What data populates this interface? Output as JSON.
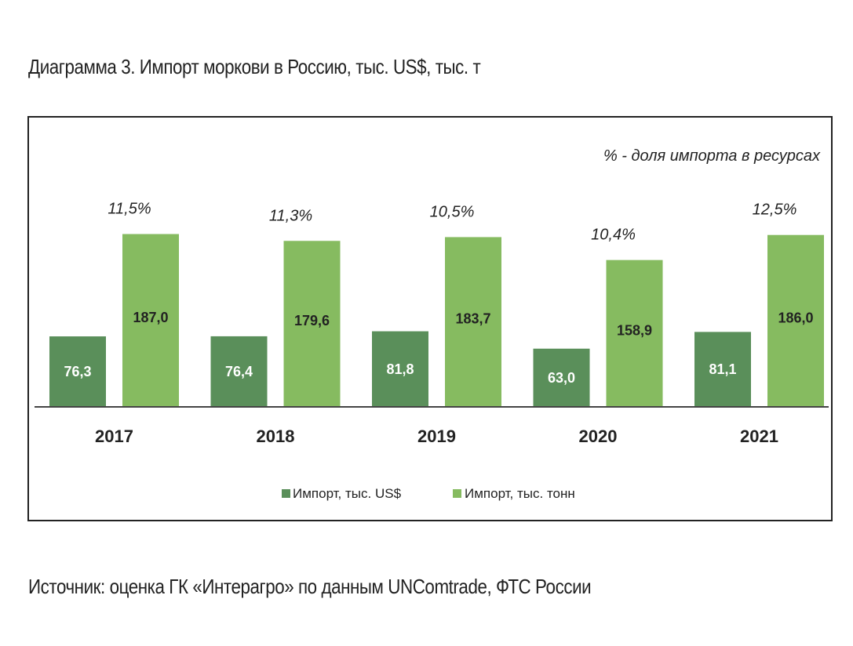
{
  "title": "Диаграмма 3. Импорт моркови в Россию, тыс. US$, тыс. т",
  "source": "Источник: оценка ГК «Интерагро» по данным UNComtrade, ФТС России",
  "colors": {
    "usd": "#5a8f5a",
    "tonnes": "#86bb60",
    "axis": "#444444",
    "text": "#222222"
  },
  "chart_data": {
    "type": "bar",
    "categories": [
      "2017",
      "2018",
      "2019",
      "2020",
      "2021"
    ],
    "series": [
      {
        "name": "Импорт, тыс. US$",
        "values": [
          76.3,
          76.4,
          81.8,
          63.0,
          81.1
        ],
        "labels": [
          "76,3",
          "76,4",
          "81,8",
          "63,0",
          "81,1"
        ]
      },
      {
        "name": "Импорт, тыс. тонн",
        "values": [
          187.0,
          179.6,
          183.7,
          158.9,
          186.0
        ],
        "labels": [
          "187,0",
          "179,6",
          "183,7",
          "158,9",
          "186,0"
        ]
      }
    ],
    "share_labels": [
      "11,5%",
      "11,3%",
      "10,5%",
      "10,4%",
      "12,5%"
    ],
    "annotation": "%  - доля импорта в ресурсах",
    "ylim": [
      0,
      190
    ],
    "grid": false,
    "legend_position": "bottom"
  }
}
